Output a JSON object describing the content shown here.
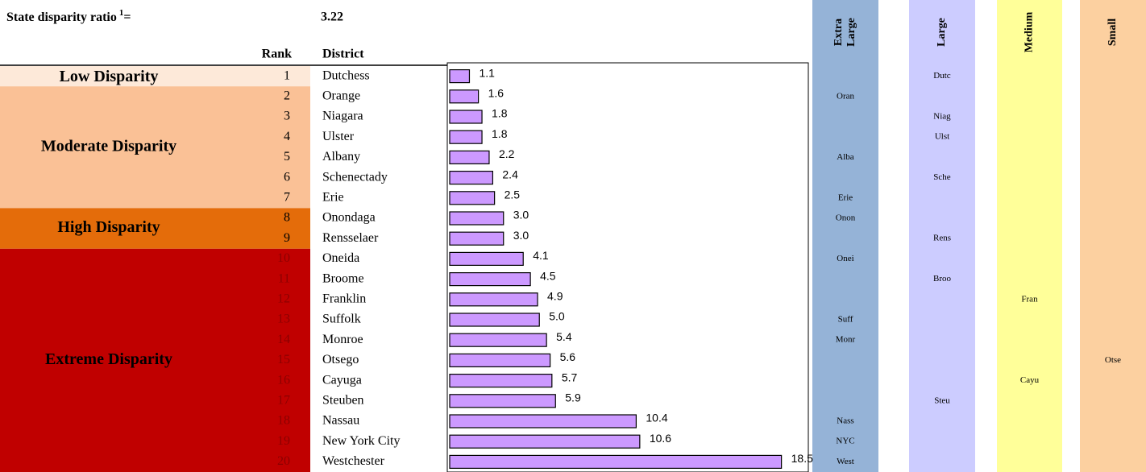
{
  "header": {
    "title": "State disparity ratio",
    "footnote": "1",
    "equals": "=",
    "ratio": 3.22
  },
  "columns": {
    "rank": "Rank",
    "district": "District"
  },
  "bands": [
    {
      "label": "Low Disparity",
      "color": "#fde9d9",
      "rank_color": "#000000",
      "ranks": [
        1
      ]
    },
    {
      "label": "Moderate Disparity",
      "color": "#fac196",
      "rank_color": "#000000",
      "ranks": [
        2,
        3,
        4,
        5,
        6,
        7
      ]
    },
    {
      "label": "High Disparity",
      "color": "#e46c0a",
      "rank_color": "#000000",
      "ranks": [
        8,
        9
      ]
    },
    {
      "label": "Extreme Disparity",
      "color": "#c00000",
      "rank_color": "#8b0000",
      "ranks": [
        10,
        11,
        12,
        13,
        14,
        15,
        16,
        17,
        18,
        19,
        20
      ]
    }
  ],
  "sizes": [
    {
      "lines": [
        "Extra",
        "Large"
      ],
      "color": "#95b3d7",
      "entries": [
        null,
        "Oran",
        null,
        null,
        "Alba",
        null,
        "Erie",
        "Onon",
        null,
        "Onei",
        null,
        null,
        "Suff",
        "Monr",
        null,
        null,
        null,
        "Nass",
        "NYC",
        "West"
      ]
    },
    {
      "lines": [
        "Large"
      ],
      "color": "#ccccff",
      "entries": [
        "Dutc",
        null,
        "Niag",
        "Ulst",
        null,
        "Sche",
        null,
        null,
        "Rens",
        null,
        "Broo",
        null,
        null,
        null,
        null,
        null,
        "Steu",
        null,
        null,
        null
      ]
    },
    {
      "lines": [
        "Medium"
      ],
      "color": "#ffff99",
      "entries": [
        null,
        null,
        null,
        null,
        null,
        null,
        null,
        null,
        null,
        null,
        null,
        "Fran",
        null,
        null,
        null,
        "Cayu",
        null,
        null,
        null,
        null
      ]
    },
    {
      "lines": [
        "Small"
      ],
      "color": "#fcd0a0",
      "entries": [
        null,
        null,
        null,
        null,
        null,
        null,
        null,
        null,
        null,
        null,
        null,
        null,
        null,
        null,
        "Otse",
        null,
        null,
        null,
        null,
        null
      ]
    }
  ],
  "chart_data": {
    "type": "bar",
    "categories": [
      "Dutchess",
      "Orange",
      "Niagara",
      "Ulster",
      "Albany",
      "Schenectady",
      "Erie",
      "Onondaga",
      "Rensselaer",
      "Oneida",
      "Broome",
      "Franklin",
      "Suffolk",
      "Monroe",
      "Otsego",
      "Cayuga",
      "Steuben",
      "Nassau",
      "New York City",
      "Westchester"
    ],
    "values": [
      1.1,
      1.6,
      1.8,
      1.8,
      2.2,
      2.4,
      2.5,
      3.0,
      3.0,
      4.1,
      4.5,
      4.9,
      5.0,
      5.4,
      5.6,
      5.7,
      5.9,
      10.4,
      10.6,
      18.5
    ],
    "value_labels": [
      "1.1",
      "1.6",
      "1.8",
      "1.8",
      "2.2",
      "2.4",
      "2.5",
      "3.0",
      "3.0",
      "4.1",
      "4.5",
      "4.9",
      "5.0",
      "5.4",
      "5.6",
      "5.7",
      "5.9",
      "10.4",
      "10.6",
      "18.5"
    ],
    "color": "#cc99ff",
    "xlim": [
      0,
      20
    ]
  }
}
